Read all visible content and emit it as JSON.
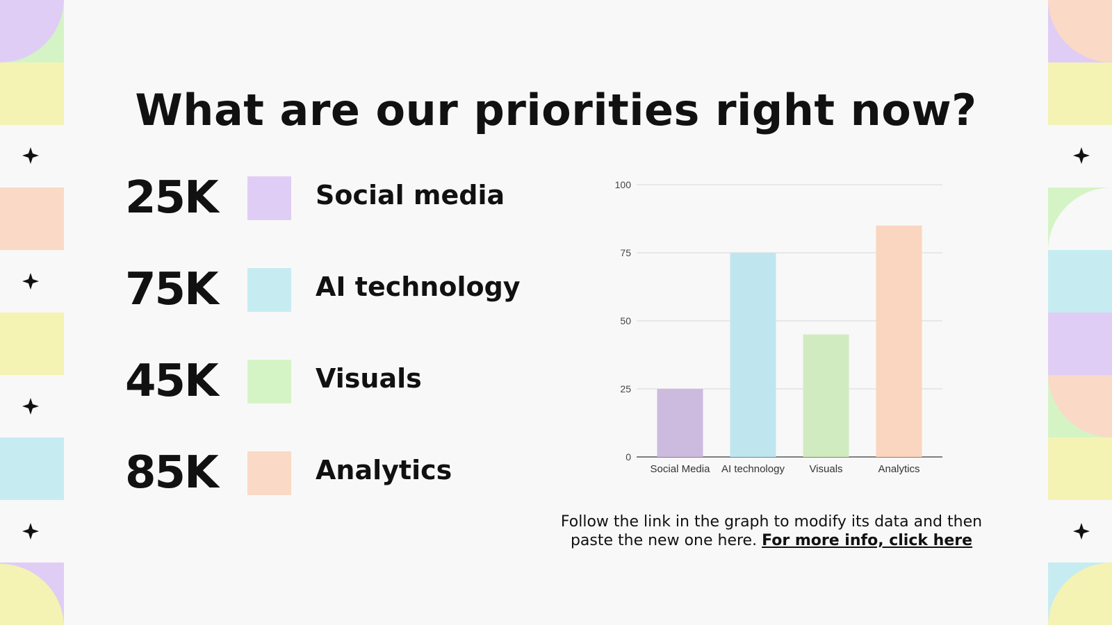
{
  "slide": {
    "title": "What are our priorities right now?",
    "caption_text": "Follow the link in the graph to modify its data and then paste the new one here.",
    "caption_link": "For more info, click here"
  },
  "legend": [
    {
      "value": "25K",
      "label": "Social media",
      "color": "#e0cdf5"
    },
    {
      "value": "75K",
      "label": "AI technology",
      "color": "#c6ecf2"
    },
    {
      "value": "45K",
      "label": "Visuals",
      "color": "#d5f4c6"
    },
    {
      "value": "85K",
      "label": "Analytics",
      "color": "#fad9c6"
    }
  ],
  "decor": {
    "lavender": "#e0cdf5",
    "mint": "#d5f4c6",
    "yellow": "#f4f3b4",
    "peach": "#fad9c6",
    "sky": "#c6ecf2",
    "star_icon": "four-point-star-icon"
  },
  "chart_data": {
    "type": "bar",
    "categories": [
      "Social Media",
      "AI technology",
      "Visuals",
      "Analytics"
    ],
    "values": [
      25,
      75,
      45,
      85
    ],
    "colors": [
      "#cdbbdf",
      "#bfe6ee",
      "#d1ebc0",
      "#fad5c0"
    ],
    "title": "",
    "xlabel": "",
    "ylabel": "",
    "ylim": [
      0,
      100
    ],
    "yticks": [
      0,
      25,
      50,
      75,
      100
    ],
    "grid": true
  }
}
